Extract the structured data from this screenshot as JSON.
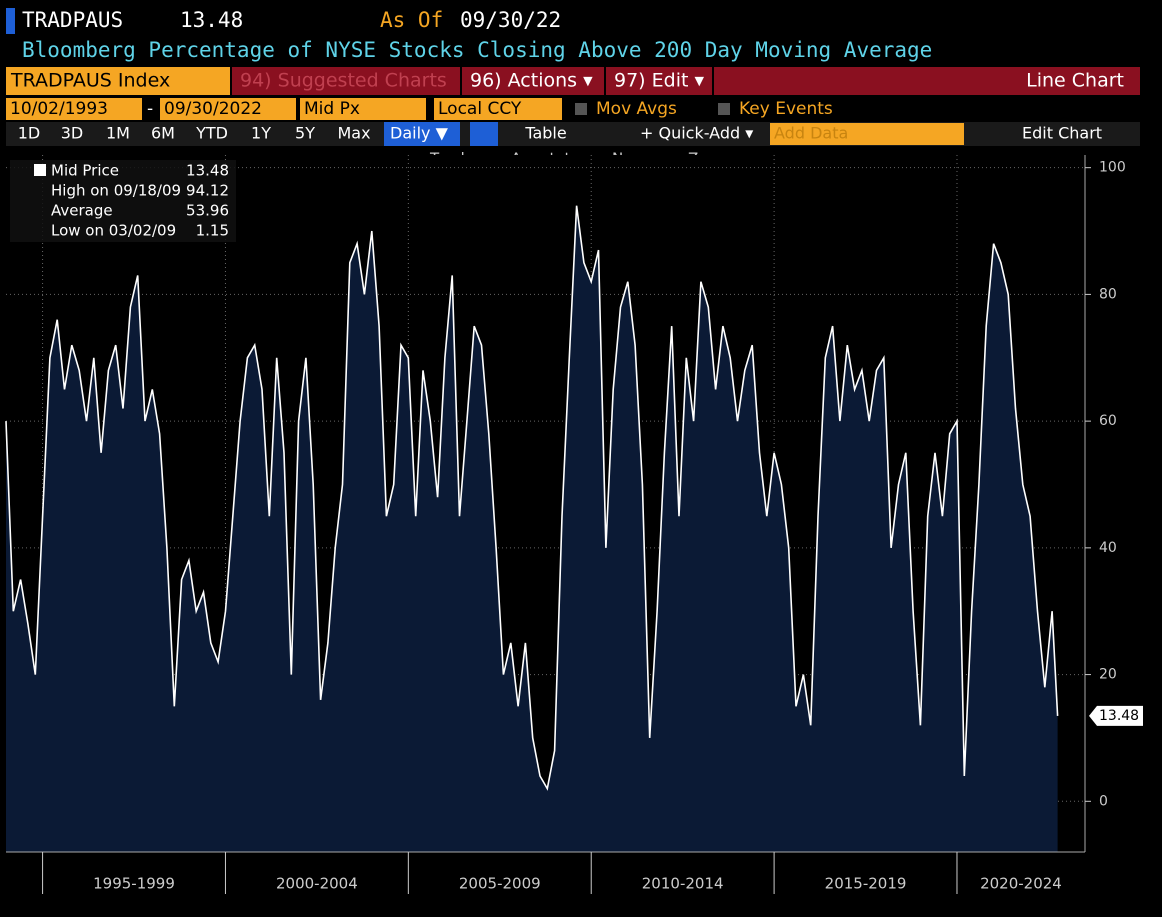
{
  "header": {
    "ticker": "TRADPAUS",
    "last": "13.48",
    "as_of_label": "As Of",
    "as_of": "09/30/22",
    "subtitle": "Bloomberg Percentage of NYSE Stocks Closing Above 200 Day Moving Average"
  },
  "toolbar": {
    "security": "TRADPAUS Index",
    "suggested": "94) Suggested Charts",
    "actions": "96) Actions ▾",
    "edit": "97) Edit ▾",
    "chart_kind": "Line Chart",
    "start": "10/02/1993",
    "dash": "-",
    "end": "09/30/2022",
    "field": "Mid Px",
    "currency": "Local CCY",
    "mov_avgs": "Mov Avgs",
    "key_events": "Key Events",
    "ranges": [
      "1D",
      "3D",
      "1M",
      "6M",
      "YTD",
      "1Y",
      "5Y",
      "Max"
    ],
    "frequency": "Daily ▼",
    "table": "Table",
    "quick_add": "+ Quick-Add ▾",
    "add_data": "Add Data",
    "edit_chart": "Edit Chart",
    "tools": [
      "Track",
      "Annotate",
      "News",
      "Zoom"
    ]
  },
  "chart_data": {
    "type": "area",
    "color": "#ffffff",
    "fill": "#0b1a35",
    "legend": [
      {
        "label": "Mid Price",
        "value": 13.48
      },
      {
        "label": "High on 09/18/09",
        "value": 94.12
      },
      {
        "label": "Average",
        "value": 53.96
      },
      {
        "label": "Low on 03/02/09",
        "value": 1.15
      }
    ],
    "xlim": [
      1994,
      2023.5
    ],
    "ylim": [
      -8,
      102
    ],
    "yticks": [
      0,
      20,
      40,
      60,
      80,
      100
    ],
    "grid": true,
    "xticks": [
      {
        "value": 1995,
        "label": "1995-1999"
      },
      {
        "value": 2000,
        "label": "2000-2004"
      },
      {
        "value": 2005,
        "label": "2005-2009"
      },
      {
        "value": 2010,
        "label": "2010-2014"
      },
      {
        "value": 2015,
        "label": "2015-2019"
      },
      {
        "value": 2020,
        "label": "2020-2024"
      }
    ],
    "x": [
      1994.0,
      1994.2,
      1994.4,
      1994.6,
      1994.8,
      1995.0,
      1995.2,
      1995.4,
      1995.6,
      1995.8,
      1996.0,
      1996.2,
      1996.4,
      1996.6,
      1996.8,
      1997.0,
      1997.2,
      1997.4,
      1997.6,
      1997.8,
      1998.0,
      1998.2,
      1998.4,
      1998.6,
      1998.8,
      1999.0,
      1999.2,
      1999.4,
      1999.6,
      1999.8,
      2000.0,
      2000.2,
      2000.4,
      2000.6,
      2000.8,
      2001.0,
      2001.2,
      2001.4,
      2001.6,
      2001.8,
      2002.0,
      2002.2,
      2002.4,
      2002.6,
      2002.8,
      2003.0,
      2003.2,
      2003.4,
      2003.6,
      2003.8,
      2004.0,
      2004.2,
      2004.4,
      2004.6,
      2004.8,
      2005.0,
      2005.2,
      2005.4,
      2005.6,
      2005.8,
      2006.0,
      2006.2,
      2006.4,
      2006.6,
      2006.8,
      2007.0,
      2007.2,
      2007.4,
      2007.6,
      2007.8,
      2008.0,
      2008.2,
      2008.4,
      2008.6,
      2008.8,
      2009.0,
      2009.2,
      2009.4,
      2009.6,
      2009.8,
      2010.0,
      2010.2,
      2010.4,
      2010.6,
      2010.8,
      2011.0,
      2011.2,
      2011.4,
      2011.6,
      2011.8,
      2012.0,
      2012.2,
      2012.4,
      2012.6,
      2012.8,
      2013.0,
      2013.2,
      2013.4,
      2013.6,
      2013.8,
      2014.0,
      2014.2,
      2014.4,
      2014.6,
      2014.8,
      2015.0,
      2015.2,
      2015.4,
      2015.6,
      2015.8,
      2016.0,
      2016.2,
      2016.4,
      2016.6,
      2016.8,
      2017.0,
      2017.2,
      2017.4,
      2017.6,
      2017.8,
      2018.0,
      2018.2,
      2018.4,
      2018.6,
      2018.8,
      2019.0,
      2019.2,
      2019.4,
      2019.6,
      2019.8,
      2020.0,
      2020.2,
      2020.4,
      2020.6,
      2020.8,
      2021.0,
      2021.2,
      2021.4,
      2021.6,
      2021.8,
      2022.0,
      2022.2,
      2022.4,
      2022.6,
      2022.75
    ],
    "values": [
      60,
      30,
      35,
      28,
      20,
      45,
      70,
      76,
      65,
      72,
      68,
      60,
      70,
      55,
      68,
      72,
      62,
      78,
      83,
      60,
      65,
      58,
      40,
      15,
      35,
      38,
      30,
      33,
      25,
      22,
      30,
      45,
      60,
      70,
      72,
      65,
      45,
      70,
      55,
      20,
      60,
      70,
      50,
      16,
      25,
      40,
      50,
      85,
      88,
      80,
      90,
      75,
      45,
      50,
      72,
      70,
      45,
      68,
      60,
      48,
      70,
      83,
      45,
      60,
      75,
      72,
      58,
      40,
      20,
      25,
      15,
      25,
      10,
      4,
      2,
      8,
      45,
      70,
      94,
      85,
      82,
      87,
      40,
      65,
      78,
      82,
      72,
      50,
      10,
      30,
      55,
      75,
      45,
      70,
      60,
      82,
      78,
      65,
      75,
      70,
      60,
      68,
      72,
      55,
      45,
      55,
      50,
      40,
      15,
      20,
      12,
      45,
      70,
      75,
      60,
      72,
      65,
      68,
      60,
      68,
      70,
      40,
      50,
      55,
      30,
      12,
      45,
      55,
      45,
      58,
      60,
      4,
      30,
      50,
      75,
      88,
      85,
      80,
      62,
      50,
      45,
      30,
      18,
      30,
      13.48
    ]
  }
}
